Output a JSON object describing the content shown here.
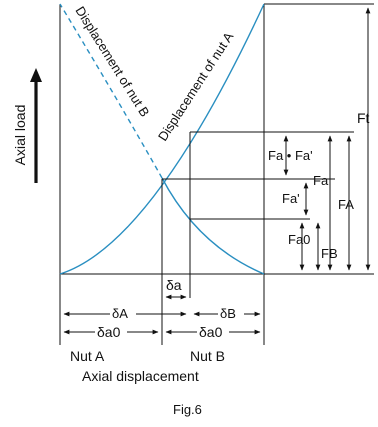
{
  "curves": {
    "nut_a": "Displacement of nut A",
    "nut_b": "Displacement of nut B",
    "color": "#2a8fc1"
  },
  "axes": {
    "y_label": "Axial load",
    "x_label": "Axial displacement"
  },
  "force_labels": {
    "ft": "Ft",
    "fa_sum": "Fa • Fa'",
    "fa": "Fa",
    "fa_prime": "Fa'",
    "fa0": "Fa0",
    "fa_big": "FA",
    "fb": "FB"
  },
  "displacement_labels": {
    "delta_a": "δa",
    "delta_A": "δA",
    "delta_B": "δB",
    "delta_a0_left": "δa0",
    "delta_a0_right": "δa0"
  },
  "nut_labels": {
    "nut_a": "Nut A",
    "nut_b": "Nut B"
  },
  "caption": "Fig.6"
}
